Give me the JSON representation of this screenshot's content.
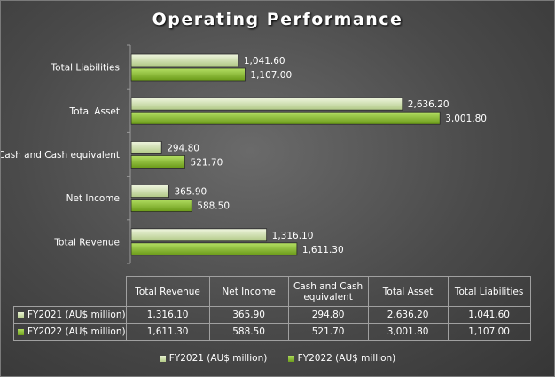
{
  "chart_data": {
    "type": "bar",
    "orientation": "horizontal",
    "title": "Operating Performance",
    "categories": [
      "Total Revenue",
      "Net Income",
      "Cash and Cash equivalent",
      "Total Asset",
      "Total Liabilities"
    ],
    "series": [
      {
        "name": "FY2021 (AU$ million)",
        "values": [
          1316.1,
          365.9,
          294.8,
          2636.2,
          1041.6
        ],
        "labels": [
          "1,316.10",
          "365.90",
          "294.80",
          "2,636.20",
          "1,041.60"
        ],
        "color": "#d2e3b0"
      },
      {
        "name": "FY2022 (AU$ million)",
        "values": [
          1611.3,
          588.5,
          521.7,
          3001.8,
          1107.0
        ],
        "labels": [
          "1,611.30",
          "588.50",
          "521.70",
          "3,001.80",
          "1,107.00"
        ],
        "color": "#8cc43c"
      }
    ],
    "xlim": [
      0,
      3500
    ],
    "grid": false,
    "legend": "bottom",
    "data_table": true
  }
}
